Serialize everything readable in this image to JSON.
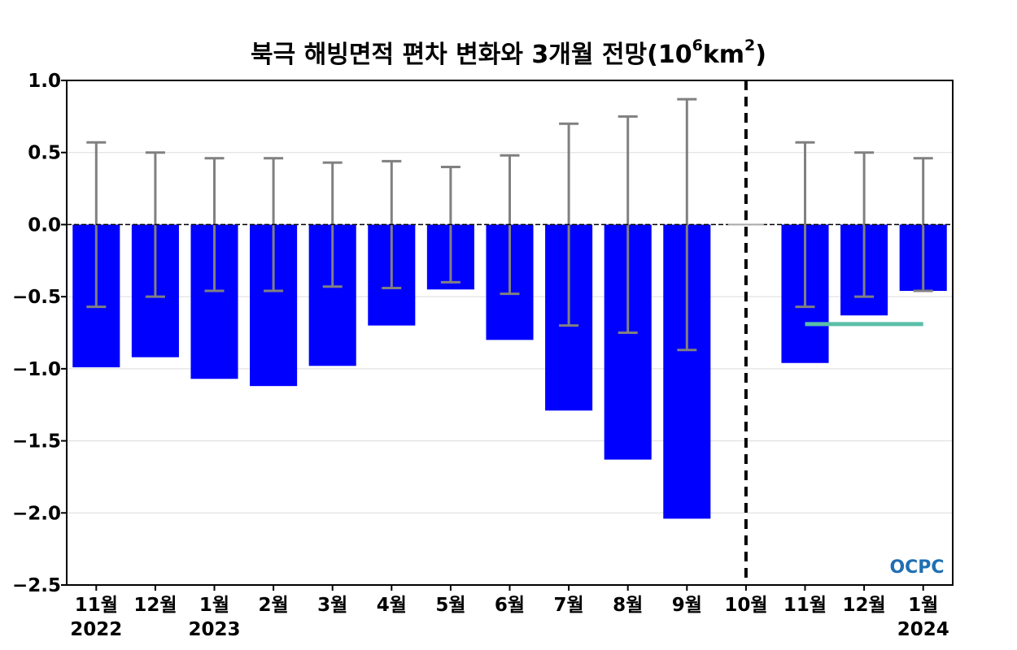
{
  "chart_data": {
    "type": "bar",
    "title": {
      "main": "북극 해빙면적 편차 변화와 3개월 전망(10",
      "sup1": "6",
      "mid": "km",
      "sup2": "2",
      "end": ")"
    },
    "categories": [
      "11월",
      "12월",
      "1월",
      "2월",
      "3월",
      "4월",
      "5월",
      "6월",
      "7월",
      "8월",
      "9월",
      "10월",
      "11월",
      "12월",
      "1월"
    ],
    "year_labels": [
      {
        "index": 0,
        "text": "2022"
      },
      {
        "index": 2,
        "text": "2023"
      },
      {
        "index": 14,
        "text": "2024"
      }
    ],
    "values": [
      -0.99,
      -0.92,
      -1.07,
      -1.12,
      -0.98,
      -0.7,
      -0.45,
      -0.8,
      -1.29,
      -1.63,
      -2.04,
      null,
      -0.96,
      -0.63,
      -0.46
    ],
    "error_bars": [
      0.57,
      0.5,
      0.46,
      0.46,
      0.43,
      0.44,
      0.4,
      0.48,
      0.7,
      0.75,
      0.87,
      null,
      0.57,
      0.5,
      0.46
    ],
    "forecast_line": {
      "from_index": 12,
      "to_index": 14,
      "value": -0.69,
      "color": "#5bbfa8"
    },
    "forecast_divider_index": 11,
    "ylim": [
      -2.5,
      1.0
    ],
    "yticks": [
      {
        "value": 1.0,
        "label": "1.0"
      },
      {
        "value": 0.5,
        "label": "0.5"
      },
      {
        "value": 0.0,
        "label": "0.0"
      },
      {
        "value": -0.5,
        "label": "−0.5"
      },
      {
        "value": -1.0,
        "label": "−1.0"
      },
      {
        "value": -1.5,
        "label": "−1.5"
      },
      {
        "value": -2.0,
        "label": "−2.0"
      },
      {
        "value": -2.5,
        "label": "−2.5"
      }
    ],
    "grid": true,
    "bar_color": "#0000ff",
    "error_color": "#808080"
  },
  "logo": {
    "text": "OCPC"
  }
}
